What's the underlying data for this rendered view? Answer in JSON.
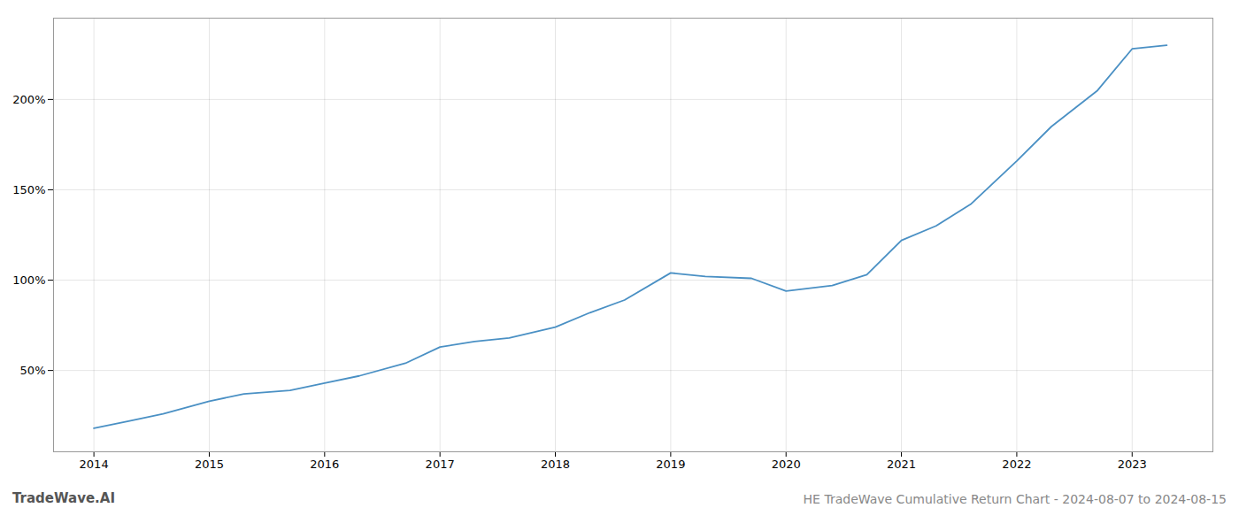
{
  "chart_data": {
    "type": "line",
    "title": "HE TradeWave Cumulative Return Chart - 2024-08-07 to 2024-08-15",
    "annotations": [
      "TradeWave.AI"
    ],
    "x": [
      2014.0,
      2014.3,
      2014.6,
      2015.0,
      2015.3,
      2015.7,
      2016.0,
      2016.3,
      2016.7,
      2017.0,
      2017.3,
      2017.6,
      2018.0,
      2018.3,
      2018.6,
      2019.0,
      2019.3,
      2019.7,
      2020.0,
      2020.4,
      2020.7,
      2021.0,
      2021.3,
      2021.6,
      2022.0,
      2022.3,
      2022.7,
      2023.0,
      2023.3
    ],
    "values": [
      18,
      22,
      26,
      33,
      37,
      39,
      43,
      47,
      54,
      63,
      66,
      68,
      74,
      82,
      89,
      104,
      102,
      101,
      94,
      97,
      103,
      122,
      130,
      142,
      166,
      185,
      205,
      228,
      230
    ],
    "color": "#4a90c4",
    "xlim": [
      2013.65,
      2023.7
    ],
    "xticks": [
      2014,
      2015,
      2016,
      2017,
      2018,
      2019,
      2020,
      2021,
      2022,
      2023
    ],
    "ylim": [
      5,
      245
    ],
    "yticks": [
      {
        "value": 50,
        "label": "50%"
      },
      {
        "value": 100,
        "label": "100%"
      },
      {
        "value": 150,
        "label": "150%"
      },
      {
        "value": 200,
        "label": "200%"
      }
    ],
    "grid": true
  }
}
